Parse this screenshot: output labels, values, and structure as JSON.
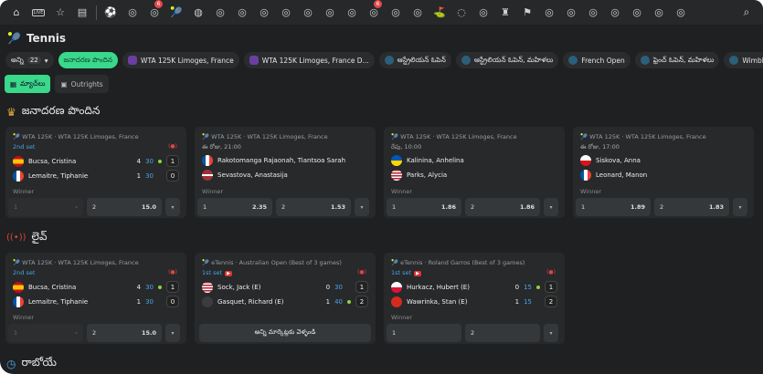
{
  "topbar": {
    "icons": [
      "home-icon",
      "live-icon",
      "star-icon",
      "betslip-icon",
      "soccer-icon",
      "boxing-icon",
      "basketball-cup-icon",
      "tennis-icon",
      "basketball-icon",
      "cricket-icon",
      "nhl-icon",
      "rugby-icon",
      "baseball-bat-icon",
      "badminton-icon",
      "volleyball-icon",
      "horse-racing-icon",
      "reel-lines-icon",
      "hockey-icon",
      "table-tennis-icon",
      "golf-icon",
      "chat-icon",
      "esports-icon",
      "chess-icon",
      "flag-icon",
      "special-icon",
      "fifa-icon",
      "darts-icon",
      "mma-icon",
      "kabaddi-icon",
      "multi-icon",
      "cycling-icon"
    ],
    "badges": {
      "6": "6",
      "16": "6"
    },
    "live_label": "LIVE"
  },
  "page": {
    "title": "Tennis"
  },
  "chips": [
    {
      "label": "అన్ని",
      "count": "22"
    },
    {
      "label": "జనాదరణ పొందిన",
      "active": true
    },
    {
      "label": "WTA 125K Limoges, France",
      "icon": "wta"
    },
    {
      "label": "WTA 125K Limoges, France D...",
      "icon": "wta"
    },
    {
      "label": "ఆస్ట్రేలియన్ ఓపెన్",
      "icon": "ao"
    },
    {
      "label": "ఆస్ట్రేలియన్ ఓపెన్, మహిళలు",
      "icon": "ao"
    },
    {
      "label": "French Open",
      "icon": "ao"
    },
    {
      "label": "ఫ్రెంచ్ ఓపెన్, మహిళలు",
      "icon": "ao"
    },
    {
      "label": "Wimbl",
      "icon": "ao"
    }
  ],
  "tabs": [
    {
      "label": "మ్యాచ్‌లు",
      "active": true
    },
    {
      "label": "Outrights"
    }
  ],
  "sections": {
    "popular": "జనాదరణ పొందిన",
    "live": "లైవ్",
    "upcoming": "రాబోయే"
  },
  "winner_label": "Winner",
  "all_markets": "అన్ని మార్కెట్లకు వెళ్ళండి",
  "popular_cards": [
    {
      "league": "WTA 125K · WTA 125K Limoges, France",
      "status": "2nd set",
      "live": true,
      "p": [
        {
          "name": "Bucsa, Cristina",
          "flag": "es",
          "games": "4",
          "pts": "30",
          "serve": true,
          "sets": "1"
        },
        {
          "name": "Lemaitre, Tiphanie",
          "flag": "fr",
          "games": "1",
          "pts": "30",
          "sets": "0"
        }
      ],
      "odds": [
        [
          "1",
          "-"
        ],
        [
          "2",
          "15.0"
        ]
      ],
      "dis1": true
    },
    {
      "league": "WTA 125K · WTA 125K Limoges, France",
      "status": "ఈ రోజు, 21:00",
      "p": [
        {
          "name": "Rakotomanga Rajaonah, Tiantsoa Sarah",
          "flag": "fr"
        },
        {
          "name": "Sevastova, Anastasija",
          "flag": "lv"
        }
      ],
      "odds": [
        [
          "1",
          "2.35"
        ],
        [
          "2",
          "1.53"
        ]
      ]
    },
    {
      "league": "WTA 125K · WTA 125K Limoges, France",
      "status": "రేపు, 10:00",
      "p": [
        {
          "name": "Kalinina, Anhelina",
          "flag": "ua"
        },
        {
          "name": "Parks, Alycia",
          "flag": "us"
        }
      ],
      "odds": [
        [
          "1",
          "1.86"
        ],
        [
          "2",
          "1.86"
        ]
      ]
    },
    {
      "league": "WTA 125K · WTA 125K Limoges, France",
      "status": "ఈ రోజు, 17:00",
      "p": [
        {
          "name": "Siskova, Anna",
          "flag": "cz"
        },
        {
          "name": "Leonard, Manon",
          "flag": "fr"
        }
      ],
      "odds": [
        [
          "1",
          "1.89"
        ],
        [
          "2",
          "1.83"
        ]
      ]
    }
  ],
  "live_cards": [
    {
      "league": "WTA 125K · WTA 125K Limoges, France",
      "status": "2nd set",
      "live": true,
      "p": [
        {
          "name": "Bucsa, Cristina",
          "flag": "es",
          "games": "4",
          "pts": "30",
          "serve": true,
          "sets": "1"
        },
        {
          "name": "Lemaitre, Tiphanie",
          "flag": "fr",
          "games": "1",
          "pts": "30",
          "sets": "0"
        }
      ],
      "odds": [
        [
          "1",
          "-"
        ],
        [
          "2",
          "15.0"
        ]
      ],
      "dis1": true
    },
    {
      "league": "eTennis · Australian Open (Best of 3 games)",
      "status": "1st set",
      "stream": true,
      "live": true,
      "p": [
        {
          "name": "Sock, Jack (E)",
          "flag": "us",
          "games": "0",
          "pts": "30",
          "sets": "1"
        },
        {
          "name": "Gasquet, Richard (E)",
          "flag": "none",
          "games": "1",
          "pts": "40",
          "serve": true,
          "sets": "2"
        }
      ],
      "allMarkets": true
    },
    {
      "league": "eTennis · Roland Garros (Best of 3 games)",
      "status": "1st set",
      "stream": true,
      "live": true,
      "p": [
        {
          "name": "Hurkacz, Hubert (E)",
          "flag": "pl",
          "games": "0",
          "pts": "15",
          "serve": true,
          "sets": "1"
        },
        {
          "name": "Wawrinka, Stan (E)",
          "flag": "ch",
          "games": "1",
          "pts": "15",
          "sets": "2"
        }
      ],
      "odds": [
        [
          "1",
          ""
        ],
        [
          "2",
          ""
        ]
      ]
    }
  ]
}
